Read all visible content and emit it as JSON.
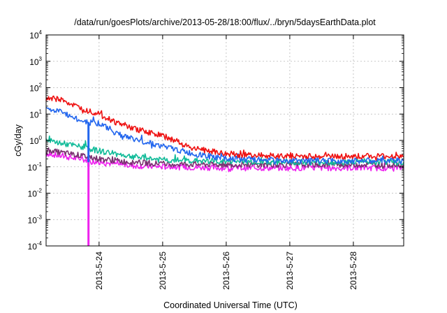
{
  "chart_data": {
    "type": "line",
    "title": "/data/run/goesPlots/archive/2013-05-28/18:00/flux/../bryn/5daysEarthData.plot",
    "xlabel": "Coordinated Universal Time (UTC)",
    "ylabel": "cGy/day",
    "y_scale": "log",
    "ylim": [
      0.0001,
      10000
    ],
    "yticks": [
      {
        "base": "10",
        "exp": "-4"
      },
      {
        "base": "10",
        "exp": "-3"
      },
      {
        "base": "10",
        "exp": "-2"
      },
      {
        "base": "10",
        "exp": "-1"
      },
      {
        "base": "10",
        "exp": "0"
      },
      {
        "base": "10",
        "exp": "1"
      },
      {
        "base": "10",
        "exp": "2"
      },
      {
        "base": "10",
        "exp": "3"
      },
      {
        "base": "10",
        "exp": "4"
      }
    ],
    "xlim": [
      "2013-05-23 04:00",
      "2013-05-28 19:00"
    ],
    "xticks": [
      "2013-5-24",
      "2013-5-25",
      "2013-5-26",
      "2013-5-27",
      "2013-5-28"
    ],
    "grid": true,
    "legend": "none",
    "series": [
      {
        "color": "#ee1111",
        "x": [
          "2013-05-23 04:00",
          "2013-05-23 10:00",
          "2013-05-23 16:00",
          "2013-05-23 20:00",
          "2013-05-24 00:00",
          "2013-05-24 06:00",
          "2013-05-24 12:00",
          "2013-05-25 00:00",
          "2013-05-25 12:00",
          "2013-05-26 00:00",
          "2013-05-27 00:00",
          "2013-05-28 00:00",
          "2013-05-28 19:00"
        ],
        "y": [
          40,
          35,
          18,
          14,
          10,
          5,
          3,
          1.5,
          0.5,
          0.3,
          0.25,
          0.25,
          0.25
        ]
      },
      {
        "color": "#2266ee",
        "x": [
          "2013-05-23 04:00",
          "2013-05-23 10:00",
          "2013-05-23 16:00",
          "2013-05-23 20:00",
          "2013-05-24 00:00",
          "2013-05-24 06:00",
          "2013-05-24 12:00",
          "2013-05-25 00:00",
          "2013-05-25 12:00",
          "2013-05-26 00:00",
          "2013-05-27 00:00",
          "2013-05-28 00:00",
          "2013-05-28 19:00"
        ],
        "y": [
          15,
          12,
          6,
          5,
          4.5,
          2,
          1.2,
          0.6,
          0.3,
          0.2,
          0.17,
          0.17,
          0.17
        ]
      },
      {
        "color": "#11bb99",
        "x": [
          "2013-05-23 04:00",
          "2013-05-23 16:00",
          "2013-05-24 00:00",
          "2013-05-24 12:00",
          "2013-05-25 00:00",
          "2013-05-26 00:00",
          "2013-05-27 00:00",
          "2013-05-28 00:00",
          "2013-05-28 19:00"
        ],
        "y": [
          1.0,
          0.6,
          0.4,
          0.25,
          0.18,
          0.16,
          0.15,
          0.15,
          0.15
        ]
      },
      {
        "color": "#7a3070",
        "x": [
          "2013-05-23 04:00",
          "2013-05-23 16:00",
          "2013-05-24 00:00",
          "2013-05-24 12:00",
          "2013-05-25 00:00",
          "2013-05-26 00:00",
          "2013-05-27 00:00",
          "2013-05-28 00:00",
          "2013-05-28 19:00"
        ],
        "y": [
          0.42,
          0.28,
          0.2,
          0.15,
          0.13,
          0.12,
          0.12,
          0.12,
          0.12
        ]
      },
      {
        "color": "#ee22ee",
        "x": [
          "2013-05-23 04:00",
          "2013-05-23 16:00",
          "2013-05-24 00:00",
          "2013-05-24 12:00",
          "2013-05-25 00:00",
          "2013-05-26 00:00",
          "2013-05-27 00:00",
          "2013-05-28 00:00",
          "2013-05-28 19:00"
        ],
        "y": [
          0.32,
          0.2,
          0.15,
          0.11,
          0.1,
          0.09,
          0.09,
          0.09,
          0.09
        ]
      }
    ],
    "dropouts": [
      {
        "color": "#2266ee",
        "x": "2013-05-23 20:00",
        "from": 5,
        "to": 0.1
      },
      {
        "color": "#ee22ee",
        "x": "2013-05-23 20:00",
        "from": 0.15,
        "to": 0.0001
      }
    ]
  }
}
